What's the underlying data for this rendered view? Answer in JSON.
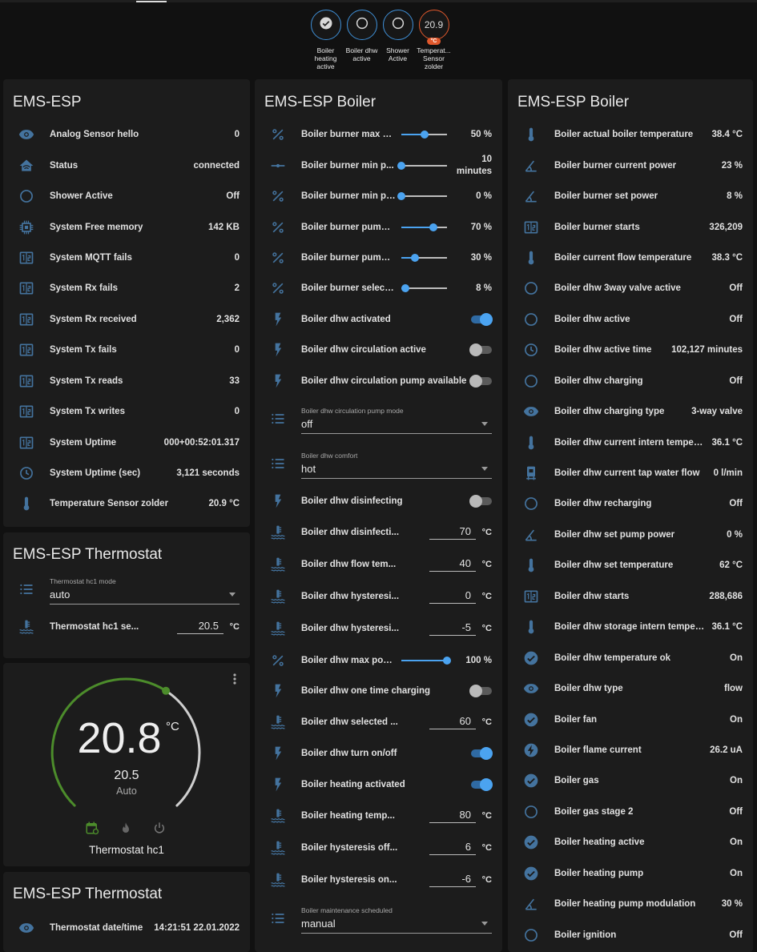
{
  "top_badges": [
    {
      "label": "Boiler heating active",
      "icon": "check-circle"
    },
    {
      "label": "Boiler dhw active",
      "icon": "circle-outline"
    },
    {
      "label": "Shower Active",
      "icon": "circle-outline"
    },
    {
      "label": "Temperat... Sensor zolder",
      "value": "20.9",
      "unit": "°C"
    }
  ],
  "ems_esp": {
    "title": "EMS-ESP",
    "rows": [
      {
        "icon": "eye",
        "name": "Analog Sensor hello",
        "value": "0"
      },
      {
        "icon": "home",
        "name": "Status",
        "value": "connected"
      },
      {
        "icon": "circle-outline",
        "name": "Shower Active",
        "value": "Off"
      },
      {
        "icon": "chip",
        "name": "System Free memory",
        "value": "142 KB"
      },
      {
        "icon": "counter",
        "name": "System MQTT fails",
        "value": "0"
      },
      {
        "icon": "counter",
        "name": "System Rx fails",
        "value": "2"
      },
      {
        "icon": "counter",
        "name": "System Rx received",
        "value": "2,362"
      },
      {
        "icon": "counter",
        "name": "System Tx fails",
        "value": "0"
      },
      {
        "icon": "counter",
        "name": "System Tx reads",
        "value": "33"
      },
      {
        "icon": "counter",
        "name": "System Tx writes",
        "value": "0"
      },
      {
        "icon": "counter",
        "name": "System Uptime",
        "value": "000+00:52:01.317"
      },
      {
        "icon": "clock",
        "name": "System Uptime (sec)",
        "value": "3,121 seconds"
      },
      {
        "icon": "thermometer",
        "name": "Temperature Sensor zolder",
        "value": "20.9 °C"
      }
    ]
  },
  "thermostat": {
    "title": "EMS-ESP Thermostat",
    "rows": [
      {
        "type": "select",
        "icon": "list",
        "name": "Thermostat hc1 mode",
        "value": "auto"
      },
      {
        "type": "number",
        "icon": "water-thermometer",
        "name": "Thermostat hc1 se...",
        "value": "20.5",
        "unit": "°C"
      }
    ]
  },
  "climate": {
    "current": "20.8",
    "unit": "°C",
    "target": "20.5",
    "mode": "Auto",
    "name": "Thermostat hc1",
    "colors": {
      "heat_arc": "#4c8c2b",
      "rest_arc": "#cfcfcf"
    },
    "modes": [
      "calendar-sync",
      "fire",
      "power"
    ]
  },
  "thermostat2": {
    "title": "EMS-ESP Thermostat",
    "rows": [
      {
        "icon": "eye",
        "name": "Thermostat date/time",
        "value": "14:21:51 22.01.2022"
      }
    ]
  },
  "boiler_controls": {
    "title": "EMS-ESP Boiler",
    "rows": [
      {
        "type": "slider",
        "icon": "percent",
        "name": "Boiler burner max po...",
        "value": "50 %",
        "fraction": 0.5
      },
      {
        "type": "slider",
        "icon": "slider",
        "name": "Boiler burner min p...",
        "value": "10 minutes",
        "fraction": 0
      },
      {
        "type": "slider",
        "icon": "percent",
        "name": "Boiler burner min po...",
        "value": "0 %",
        "fraction": 0
      },
      {
        "type": "slider",
        "icon": "percent",
        "name": "Boiler burner pump ...",
        "value": "70 %",
        "fraction": 0.7
      },
      {
        "type": "slider",
        "icon": "percent",
        "name": "Boiler burner pump ...",
        "value": "30 %",
        "fraction": 0.3
      },
      {
        "type": "slider",
        "icon": "percent",
        "name": "Boiler burner selecte...",
        "value": "8 %",
        "fraction": 0.08
      },
      {
        "type": "toggle",
        "icon": "flash",
        "name": "Boiler dhw activated",
        "on": true
      },
      {
        "type": "toggle",
        "icon": "flash",
        "name": "Boiler dhw circulation active",
        "on": false
      },
      {
        "type": "toggle",
        "icon": "flash",
        "name": "Boiler dhw circulation pump available",
        "on": false
      },
      {
        "type": "select",
        "icon": "list",
        "name": "Boiler dhw circulation pump mode",
        "value": "off"
      },
      {
        "type": "select",
        "icon": "list",
        "name": "Boiler dhw comfort",
        "value": "hot"
      },
      {
        "type": "toggle",
        "icon": "flash",
        "name": "Boiler dhw disinfecting",
        "on": false
      },
      {
        "type": "number",
        "icon": "water-thermometer",
        "name": "Boiler dhw disinfecti...",
        "value": "70",
        "unit": "°C"
      },
      {
        "type": "number",
        "icon": "water-thermometer",
        "name": "Boiler dhw flow tem...",
        "value": "40",
        "unit": "°C"
      },
      {
        "type": "number",
        "icon": "water-thermometer",
        "name": "Boiler dhw hysteresi...",
        "value": "0",
        "unit": "°C"
      },
      {
        "type": "number",
        "icon": "water-thermometer",
        "name": "Boiler dhw hysteresi...",
        "value": "-5",
        "unit": "°C"
      },
      {
        "type": "slider",
        "icon": "percent",
        "name": "Boiler dhw max power",
        "value": "100 %",
        "fraction": 1
      },
      {
        "type": "toggle",
        "icon": "flash",
        "name": "Boiler dhw one time charging",
        "on": false
      },
      {
        "type": "number",
        "icon": "water-thermometer",
        "name": "Boiler dhw selected ...",
        "value": "60",
        "unit": "°C"
      },
      {
        "type": "toggle",
        "icon": "flash",
        "name": "Boiler dhw turn on/off",
        "on": true
      },
      {
        "type": "toggle",
        "icon": "flash",
        "name": "Boiler heating activated",
        "on": true
      },
      {
        "type": "number",
        "icon": "water-thermometer",
        "name": "Boiler heating temp...",
        "value": "80",
        "unit": "°C"
      },
      {
        "type": "number",
        "icon": "water-thermometer",
        "name": "Boiler hysteresis off...",
        "value": "6",
        "unit": "°C"
      },
      {
        "type": "number",
        "icon": "water-thermometer",
        "name": "Boiler hysteresis on...",
        "value": "-6",
        "unit": "°C"
      },
      {
        "type": "select",
        "icon": "list",
        "name": "Boiler maintenance scheduled",
        "value": "manual"
      }
    ]
  },
  "boiler_sensors": {
    "title": "EMS-ESP Boiler",
    "rows": [
      {
        "icon": "thermometer",
        "name": "Boiler actual boiler temperature",
        "value": "38.4 °C"
      },
      {
        "icon": "angle",
        "name": "Boiler burner current power",
        "value": "23 %"
      },
      {
        "icon": "angle",
        "name": "Boiler burner set power",
        "value": "8 %"
      },
      {
        "icon": "counter",
        "name": "Boiler burner starts",
        "value": "326,209"
      },
      {
        "icon": "thermometer",
        "name": "Boiler current flow temperature",
        "value": "38.3 °C"
      },
      {
        "icon": "circle-outline",
        "name": "Boiler dhw 3way valve active",
        "value": "Off"
      },
      {
        "icon": "circle-outline",
        "name": "Boiler dhw active",
        "value": "Off"
      },
      {
        "icon": "clock",
        "name": "Boiler dhw active time",
        "value": "102,127 minutes"
      },
      {
        "icon": "circle-outline",
        "name": "Boiler dhw charging",
        "value": "Off"
      },
      {
        "icon": "eye",
        "name": "Boiler dhw charging type",
        "value": "3-way valve"
      },
      {
        "icon": "thermometer",
        "name": "Boiler dhw current intern temperature",
        "value": "36.1 °C"
      },
      {
        "icon": "water-pump",
        "name": "Boiler dhw current tap water flow",
        "value": "0 l/min"
      },
      {
        "icon": "circle-outline",
        "name": "Boiler dhw recharging",
        "value": "Off"
      },
      {
        "icon": "angle",
        "name": "Boiler dhw set pump power",
        "value": "0 %"
      },
      {
        "icon": "thermometer",
        "name": "Boiler dhw set temperature",
        "value": "62 °C"
      },
      {
        "icon": "counter",
        "name": "Boiler dhw starts",
        "value": "288,686"
      },
      {
        "icon": "thermometer",
        "name": "Boiler dhw storage intern temperature",
        "value": "36.1 °C"
      },
      {
        "icon": "check-circle",
        "name": "Boiler dhw temperature ok",
        "value": "On"
      },
      {
        "icon": "eye",
        "name": "Boiler dhw type",
        "value": "flow"
      },
      {
        "icon": "check-circle",
        "name": "Boiler fan",
        "value": "On"
      },
      {
        "icon": "flash-circle",
        "name": "Boiler flame current",
        "value": "26.2 uA"
      },
      {
        "icon": "check-circle",
        "name": "Boiler gas",
        "value": "On"
      },
      {
        "icon": "circle-outline",
        "name": "Boiler gas stage 2",
        "value": "Off"
      },
      {
        "icon": "check-circle",
        "name": "Boiler heating active",
        "value": "On"
      },
      {
        "icon": "check-circle",
        "name": "Boiler heating pump",
        "value": "On"
      },
      {
        "icon": "angle",
        "name": "Boiler heating pump modulation",
        "value": "30 %"
      },
      {
        "icon": "circle-outline",
        "name": "Boiler ignition",
        "value": "Off"
      }
    ]
  },
  "colors": {
    "icon": "#44739e",
    "accent": "#4ba3f0",
    "card": "#1c1c1c",
    "background": "#111111",
    "badge_orange": "#e0582c"
  }
}
